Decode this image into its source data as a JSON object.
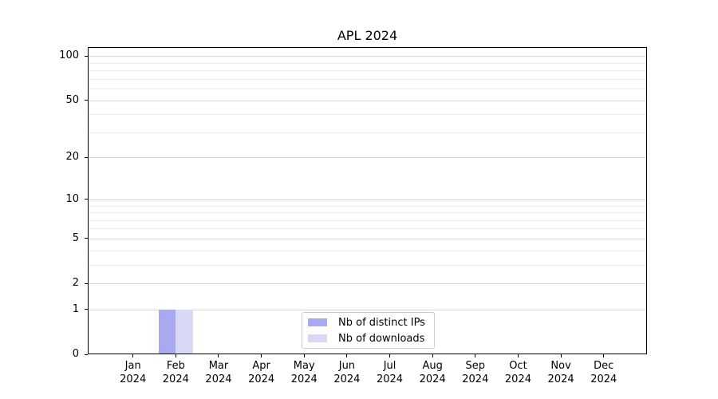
{
  "chart_data": {
    "type": "bar",
    "title": "APL 2024",
    "categories": [
      "Jan",
      "Feb",
      "Mar",
      "Apr",
      "May",
      "Jun",
      "Jul",
      "Aug",
      "Sep",
      "Oct",
      "Nov",
      "Dec"
    ],
    "x_year": "2024",
    "series": [
      {
        "name": "Nb of distinct IPs",
        "color": "#a9a9f2",
        "values": [
          0,
          1,
          0,
          0,
          0,
          0,
          0,
          0,
          0,
          0,
          0,
          0
        ]
      },
      {
        "name": "Nb of downloads",
        "color": "#d9d9f7",
        "values": [
          0,
          1,
          0,
          0,
          0,
          0,
          0,
          0,
          0,
          0,
          0,
          0
        ]
      }
    ],
    "xlabel": "",
    "ylabel": "",
    "y_scale": "log1p",
    "y_ticks": [
      0,
      1,
      2,
      5,
      10,
      20,
      50,
      100
    ],
    "y_minor_gridlines": [
      3,
      4,
      6,
      7,
      8,
      9,
      30,
      40,
      60,
      70,
      80,
      90
    ],
    "ylim": [
      0,
      115
    ],
    "grid": true,
    "legend_position": "lower center"
  },
  "colors": {
    "background": "#ffffff",
    "spine": "#000000",
    "major_grid": "#d6d6d6",
    "minor_grid": "#ececec",
    "text": "#000000",
    "legend_border": "#cccccc"
  }
}
